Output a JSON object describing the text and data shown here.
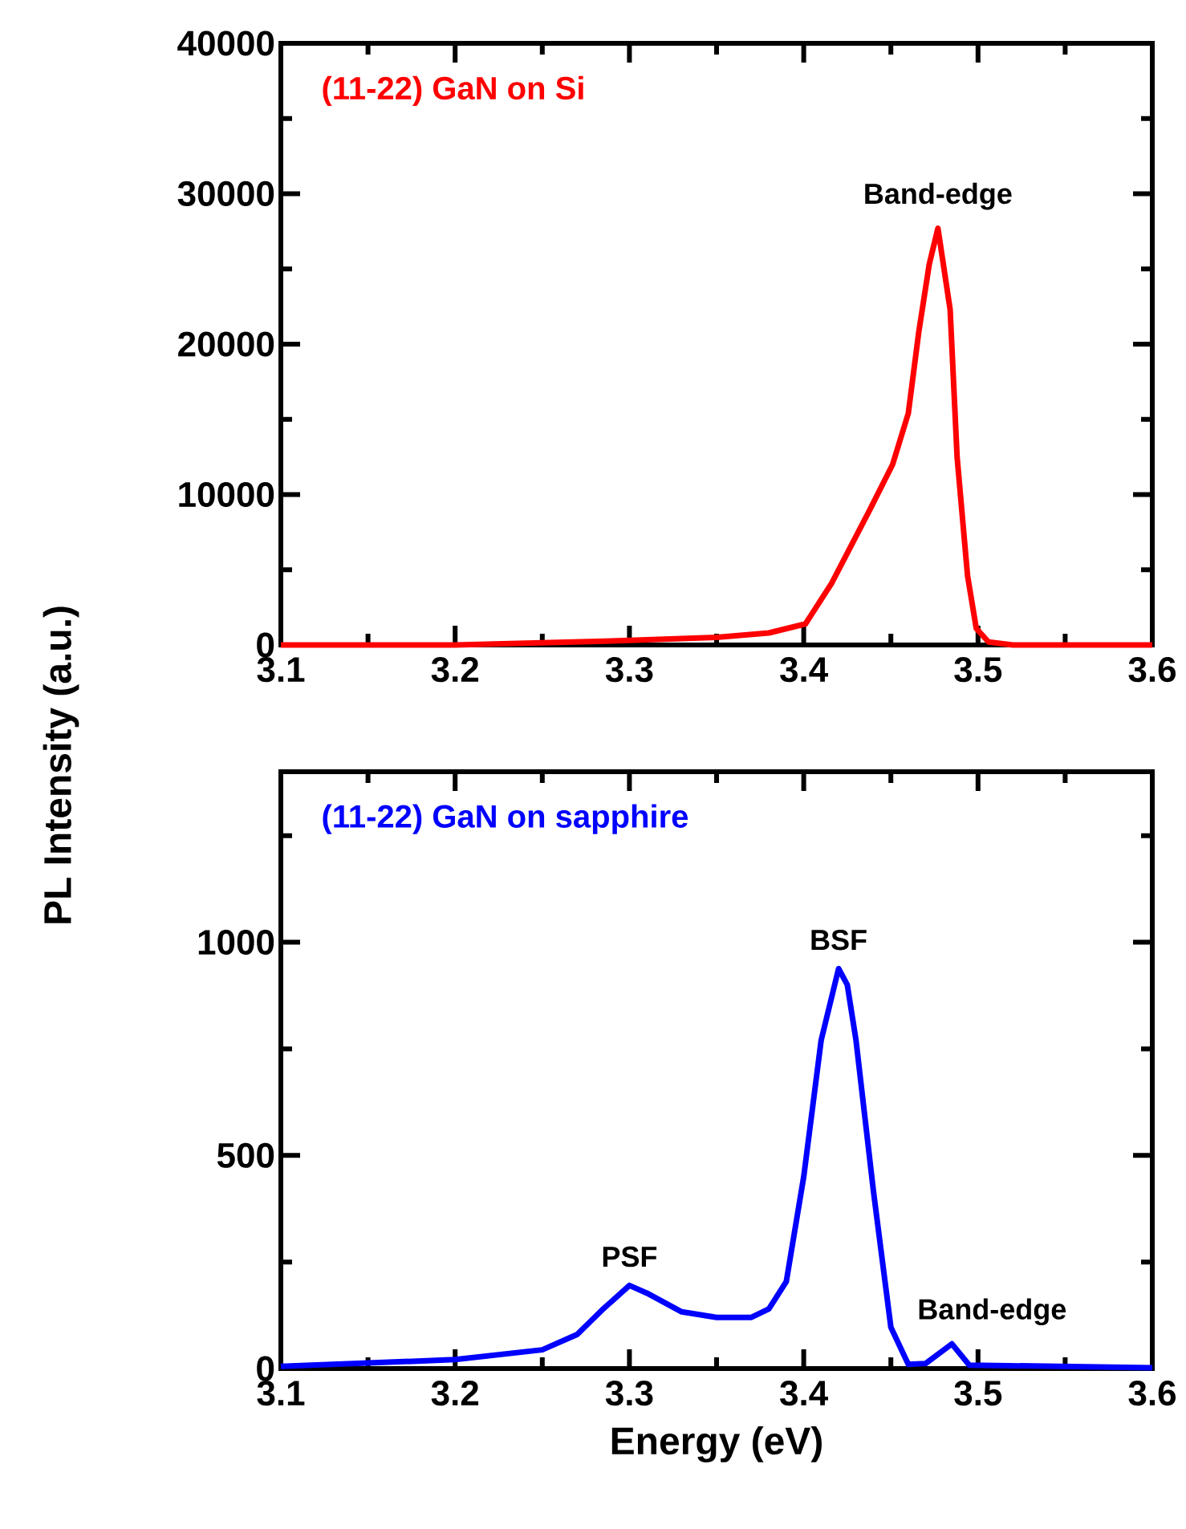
{
  "chart_data": [
    {
      "type": "line",
      "ylabel": "PL Intensity (a.u.)",
      "xlim": [
        3.1,
        3.6
      ],
      "xticks": [
        3.1,
        3.2,
        3.3,
        3.4,
        3.5,
        3.6,
        {
          "value": 3.15,
          "label": null
        },
        {
          "value": 3.25,
          "label": null
        },
        {
          "value": 3.35,
          "label": null
        },
        {
          "value": 3.45,
          "label": null
        },
        {
          "value": 3.55,
          "label": null
        }
      ],
      "ylim": [
        0,
        40000
      ],
      "yticks": [
        0,
        10000,
        20000,
        30000,
        40000,
        {
          "value": 5000,
          "label": null
        },
        {
          "value": 15000,
          "label": null
        },
        {
          "value": 25000,
          "label": null
        },
        {
          "value": 35000,
          "label": null
        }
      ],
      "annotations": [
        {
          "text": "Band-edge",
          "x": 3.477,
          "y": 27700
        }
      ],
      "series": [
        {
          "name": "(11-22) GaN on Si",
          "color": "#ff0000",
          "x": [
            3.1,
            3.2,
            3.3,
            3.35,
            3.38,
            3.401,
            3.416,
            3.438,
            3.451,
            3.46,
            3.466,
            3.472,
            3.477,
            3.484,
            3.488,
            3.494,
            3.499,
            3.506,
            3.52,
            3.6
          ],
          "values": [
            0,
            0,
            300,
            500,
            800,
            1400,
            4100,
            9000,
            12000,
            15400,
            20800,
            25300,
            27700,
            22300,
            12500,
            4600,
            1100,
            200,
            0,
            0
          ]
        }
      ]
    },
    {
      "type": "line",
      "xlabel": "Energy (eV)",
      "xlim": [
        3.1,
        3.6
      ],
      "xticks": [
        3.1,
        3.2,
        3.3,
        3.4,
        3.5,
        3.6,
        {
          "value": 3.15,
          "label": null
        },
        {
          "value": 3.25,
          "label": null
        },
        {
          "value": 3.35,
          "label": null
        },
        {
          "value": 3.45,
          "label": null
        },
        {
          "value": 3.55,
          "label": null
        }
      ],
      "ylim": [
        0,
        1400
      ],
      "yticks": [
        0,
        500,
        1000,
        {
          "value": 250,
          "label": null
        },
        {
          "value": 750,
          "label": null
        },
        {
          "value": 1250,
          "label": null
        }
      ],
      "annotations": [
        {
          "text": "PSF",
          "x": 3.3,
          "y": 195
        },
        {
          "text": "BSF",
          "x": 3.42,
          "y": 938
        },
        {
          "text": "Band-edge",
          "x": 3.485,
          "y": 58
        }
      ],
      "series": [
        {
          "name": "(11-22) GaN on sapphire",
          "color": "#0000ff",
          "x": [
            3.1,
            3.2,
            3.25,
            3.27,
            3.285,
            3.3,
            3.31,
            3.33,
            3.35,
            3.37,
            3.38,
            3.39,
            3.4,
            3.41,
            3.42,
            3.425,
            3.43,
            3.44,
            3.45,
            3.46,
            3.47,
            3.485,
            3.495,
            3.6
          ],
          "values": [
            5,
            21,
            44,
            80,
            140,
            195,
            177,
            133,
            120,
            120,
            140,
            204,
            450,
            770,
            938,
            900,
            770,
            416,
            97,
            10,
            12,
            58,
            8,
            2
          ]
        }
      ]
    }
  ]
}
